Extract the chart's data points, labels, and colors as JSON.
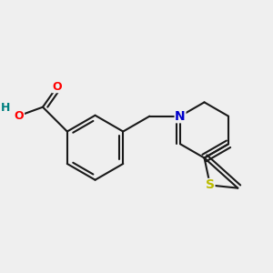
{
  "background_color": "#efefef",
  "bond_color": "#1a1a1a",
  "bond_width": 1.5,
  "atom_colors": {
    "O": "#ff0000",
    "N": "#0000cc",
    "S": "#bbbb00",
    "H": "#008080",
    "C": "#1a1a1a"
  },
  "figsize": [
    3.0,
    3.0
  ],
  "dpi": 100,
  "xlim": [
    -2.3,
    2.3
  ],
  "ylim": [
    -2.0,
    2.0
  ]
}
